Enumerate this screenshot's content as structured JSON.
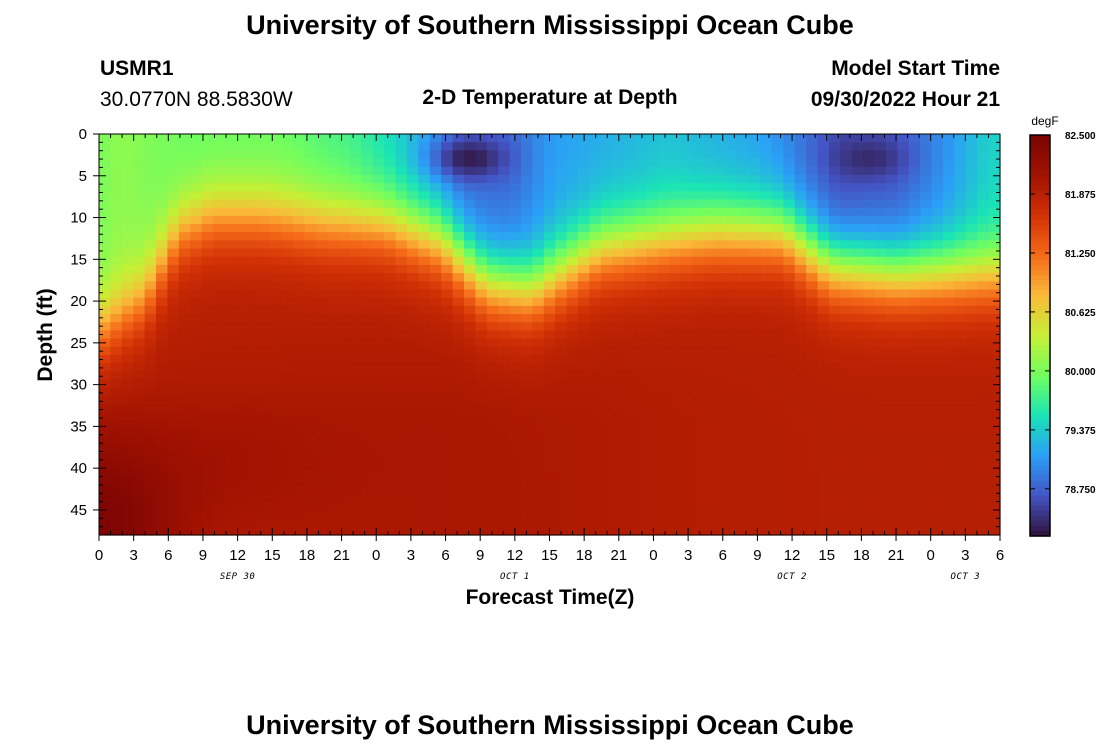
{
  "page": {
    "title": "University of Southern Mississippi Ocean Cube",
    "footer_title": "University of Southern Mississippi Ocean Cube"
  },
  "station": {
    "id": "USMR1",
    "coords": "30.0770N  88.5830W"
  },
  "model": {
    "label": "Model Start Time",
    "start": "09/30/2022 Hour 21"
  },
  "chart_data": {
    "type": "heatmap",
    "title": "2-D Temperature at Depth",
    "xlabel": "Forecast Time(Z)",
    "ylabel": "Depth (ft)",
    "x_ticks": [
      "0",
      "3",
      "6",
      "9",
      "12",
      "15",
      "18",
      "21",
      "0",
      "3",
      "6",
      "9",
      "12",
      "15",
      "18",
      "21",
      "0",
      "3",
      "6",
      "9",
      "12",
      "15",
      "18",
      "21",
      "0",
      "3",
      "6"
    ],
    "x_range_hours": [
      0,
      78
    ],
    "date_labels": [
      {
        "hour": 12,
        "text": "SEP 30"
      },
      {
        "hour": 36,
        "text": "OCT 1"
      },
      {
        "hour": 60,
        "text": "OCT 2"
      },
      {
        "hour": 75,
        "text": "OCT 3"
      }
    ],
    "y_ticks": [
      "0",
      "5",
      "10",
      "15",
      "20",
      "25",
      "30",
      "35",
      "40",
      "45"
    ],
    "ylim": [
      0,
      48
    ],
    "y_inverted": true,
    "colorbar": {
      "unit": "degF",
      "vmin": 78.25,
      "vmax": 82.5,
      "ticks": [
        "82.500",
        "81.875",
        "81.250",
        "80.625",
        "80.000",
        "79.375",
        "78.750"
      ],
      "colors": [
        "#30123b",
        "#4454c4",
        "#2b9ff7",
        "#1ae4b6",
        "#71fe5f",
        "#c8ef34",
        "#faba39",
        "#f56918",
        "#d23105",
        "#a11201",
        "#7a0403"
      ]
    },
    "sampling": {
      "nx": 79,
      "nz": 49,
      "x_start": 0,
      "x_step": 1,
      "z_start": 0,
      "z_step": 1
    },
    "thermocline_depth_ft": [
      {
        "hour": 0,
        "depth": 24
      },
      {
        "hour": 4,
        "depth": 20
      },
      {
        "hour": 7,
        "depth": 12
      },
      {
        "hour": 10,
        "depth": 10
      },
      {
        "hour": 14,
        "depth": 10
      },
      {
        "hour": 20,
        "depth": 11
      },
      {
        "hour": 25,
        "depth": 11
      },
      {
        "hour": 30,
        "depth": 13
      },
      {
        "hour": 34,
        "depth": 18
      },
      {
        "hour": 38,
        "depth": 19
      },
      {
        "hour": 44,
        "depth": 14
      },
      {
        "hour": 54,
        "depth": 12
      },
      {
        "hour": 60,
        "depth": 12
      },
      {
        "hour": 64,
        "depth": 16
      },
      {
        "hour": 70,
        "depth": 17
      },
      {
        "hour": 78,
        "depth": 17
      }
    ],
    "surface_temp_degF": [
      {
        "hour": 0,
        "temp": 80.0
      },
      {
        "hour": 2,
        "temp": 80.1
      },
      {
        "hour": 8,
        "temp": 79.9
      },
      {
        "hour": 16,
        "temp": 79.9
      },
      {
        "hour": 22,
        "temp": 79.7
      },
      {
        "hour": 26,
        "temp": 79.4
      },
      {
        "hour": 32,
        "temp": 78.8
      },
      {
        "hour": 36,
        "temp": 78.8
      },
      {
        "hour": 40,
        "temp": 79.1
      },
      {
        "hour": 50,
        "temp": 79.3
      },
      {
        "hour": 58,
        "temp": 79.1
      },
      {
        "hour": 65,
        "temp": 78.6
      },
      {
        "hour": 70,
        "temp": 78.7
      },
      {
        "hour": 74,
        "temp": 79.0
      },
      {
        "hour": 78,
        "temp": 79.4
      }
    ],
    "cold_cores": [
      {
        "hour": 32.5,
        "depth": 3,
        "temp": 78.3
      },
      {
        "hour": 67.5,
        "depth": 3,
        "temp": 78.4
      }
    ],
    "deep_temp_degF": [
      {
        "hour": 0,
        "depth": 48,
        "temp": 82.45
      },
      {
        "hour": 12,
        "depth": 40,
        "temp": 81.95
      },
      {
        "hour": 30,
        "depth": 35,
        "temp": 82.0
      },
      {
        "hour": 78,
        "depth": 40,
        "temp": 81.9
      }
    ]
  }
}
